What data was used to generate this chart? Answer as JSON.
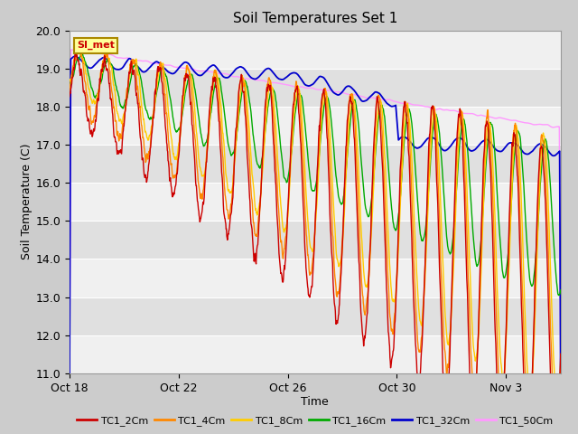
{
  "title": "Soil Temperatures Set 1",
  "xlabel": "Time",
  "ylabel": "Soil Temperature (C)",
  "ylim": [
    11.0,
    20.0
  ],
  "yticks": [
    11.0,
    12.0,
    13.0,
    14.0,
    15.0,
    16.0,
    17.0,
    18.0,
    19.0,
    20.0
  ],
  "xtick_labels": [
    "Oct 18",
    "Oct 22",
    "Oct 26",
    "Oct 30",
    "Nov 3"
  ],
  "xtick_positions": [
    0,
    4,
    8,
    12,
    16
  ],
  "xlim": [
    0,
    18
  ],
  "legend_labels": [
    "TC1_2Cm",
    "TC1_4Cm",
    "TC1_8Cm",
    "TC1_16Cm",
    "TC1_32Cm",
    "TC1_50Cm"
  ],
  "line_colors": [
    "#cc0000",
    "#ff8800",
    "#ffcc00",
    "#00aa00",
    "#0000cc",
    "#ff99ff"
  ],
  "annotation_text": "SI_met",
  "annotation_color": "#cc0000",
  "annotation_bg": "#ffff99",
  "annotation_border": "#aa8800",
  "fig_bg": "#cccccc",
  "stripe_colors": [
    "#f0f0f0",
    "#e0e0e0"
  ]
}
